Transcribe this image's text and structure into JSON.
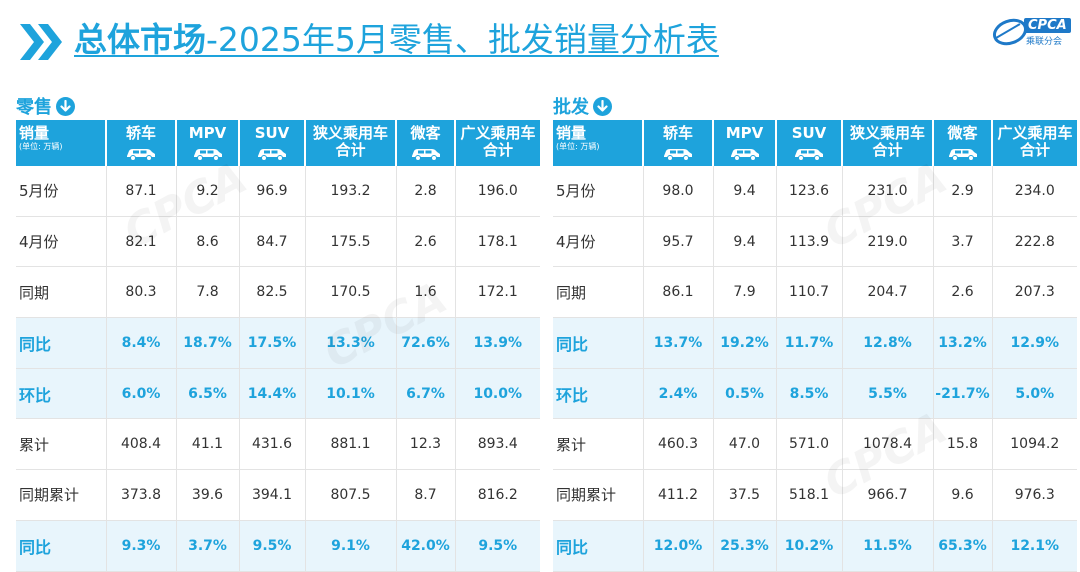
{
  "header": {
    "title_bold": "总体市场",
    "title_rest": "-2025年5月零售、批发销量分析表",
    "logo_text": "CPCA",
    "logo_sub": "乘联分会"
  },
  "watermark_text": "CPCA",
  "colors": {
    "accent": "#1ea3dc",
    "pct_row_bg": "#e8f5fc"
  },
  "retail": {
    "title": "零售",
    "title_icon": "down-arrow-circle-icon",
    "header_label": "销量",
    "header_unit": "(单位: 万辆)",
    "columns": [
      "轿车",
      "MPV",
      "SUV",
      "狭义乘用车合计",
      "微客",
      "广义乘用车合计"
    ],
    "column_lines": [
      [
        "轿车"
      ],
      [
        "MPV"
      ],
      [
        "SUV"
      ],
      [
        "狭义乘用车",
        "合计"
      ],
      [
        "微客"
      ],
      [
        "广义乘用车",
        "合计"
      ]
    ],
    "rows": [
      {
        "label": "5月份",
        "values": [
          "87.1",
          "9.2",
          "96.9",
          "193.2",
          "2.8",
          "196.0"
        ]
      },
      {
        "label": "4月份",
        "values": [
          "82.1",
          "8.6",
          "84.7",
          "175.5",
          "2.6",
          "178.1"
        ]
      },
      {
        "label": "同期",
        "values": [
          "80.3",
          "7.8",
          "82.5",
          "170.5",
          "1.6",
          "172.1"
        ]
      },
      {
        "label": "同比",
        "values": [
          "8.4%",
          "18.7%",
          "17.5%",
          "13.3%",
          "72.6%",
          "13.9%"
        ]
      },
      {
        "label": "环比",
        "values": [
          "6.0%",
          "6.5%",
          "14.4%",
          "10.1%",
          "6.7%",
          "10.0%"
        ]
      },
      {
        "label": "累计",
        "values": [
          "408.4",
          "41.1",
          "431.6",
          "881.1",
          "12.3",
          "893.4"
        ]
      },
      {
        "label": "同期累计",
        "values": [
          "373.8",
          "39.6",
          "394.1",
          "807.5",
          "8.7",
          "816.2"
        ]
      },
      {
        "label": "同比",
        "values": [
          "9.3%",
          "3.7%",
          "9.5%",
          "9.1%",
          "42.0%",
          "9.5%"
        ]
      }
    ]
  },
  "wholesale": {
    "title": "批发",
    "title_icon": "down-arrow-circle-icon",
    "header_label": "销量",
    "header_unit": "(单位: 万辆)",
    "columns": [
      "轿车",
      "MPV",
      "SUV",
      "狭义乘用车合计",
      "微客",
      "广义乘用车合计"
    ],
    "column_lines": [
      [
        "轿车"
      ],
      [
        "MPV"
      ],
      [
        "SUV"
      ],
      [
        "狭义乘用车",
        "合计"
      ],
      [
        "微客"
      ],
      [
        "广义乘用车",
        "合计"
      ]
    ],
    "rows": [
      {
        "label": "5月份",
        "values": [
          "98.0",
          "9.4",
          "123.6",
          "231.0",
          "2.9",
          "234.0"
        ]
      },
      {
        "label": "4月份",
        "values": [
          "95.7",
          "9.4",
          "113.9",
          "219.0",
          "3.7",
          "222.8"
        ]
      },
      {
        "label": "同期",
        "values": [
          "86.1",
          "7.9",
          "110.7",
          "204.7",
          "2.6",
          "207.3"
        ]
      },
      {
        "label": "同比",
        "values": [
          "13.7%",
          "19.2%",
          "11.7%",
          "12.8%",
          "13.2%",
          "12.9%"
        ]
      },
      {
        "label": "环比",
        "values": [
          "2.4%",
          "0.5%",
          "8.5%",
          "5.5%",
          "-21.7%",
          "5.0%"
        ]
      },
      {
        "label": "累计",
        "values": [
          "460.3",
          "47.0",
          "571.0",
          "1078.4",
          "15.8",
          "1094.2"
        ]
      },
      {
        "label": "同期累计",
        "values": [
          "411.2",
          "37.5",
          "518.1",
          "966.7",
          "9.6",
          "976.3"
        ]
      },
      {
        "label": "同比",
        "values": [
          "12.0%",
          "25.3%",
          "10.2%",
          "11.5%",
          "65.3%",
          "12.1%"
        ]
      }
    ]
  }
}
